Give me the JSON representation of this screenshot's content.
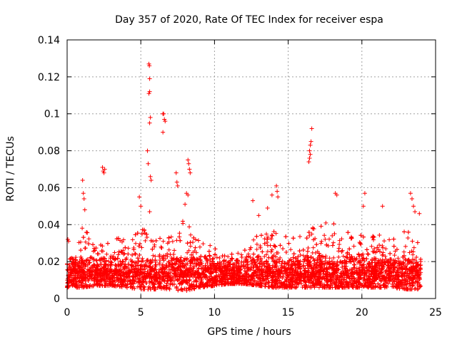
{
  "chart_data": {
    "type": "scatter",
    "title": "Day 357 of 2020, Rate Of TEC Index for receiver espa",
    "xlabel": "GPS time / hours",
    "ylabel": "ROTI / TECUs",
    "xlim": [
      0,
      25
    ],
    "ylim": [
      0,
      0.14
    ],
    "x_ticks": [
      "0",
      "5",
      "10",
      "15",
      "20",
      "25"
    ],
    "y_ticks": [
      "0",
      "0.02",
      "0.04",
      "0.06",
      "0.08",
      "0.1",
      "0.12",
      "0.14"
    ],
    "grid": true,
    "marker": "+",
    "series": [
      {
        "name": "ROTI",
        "color": "#ff0000",
        "points": [
          [
            0.05,
            0.032
          ],
          [
            0.1,
            0.031
          ],
          [
            0.3,
            0.022
          ],
          [
            1.05,
            0.064
          ],
          [
            1.1,
            0.057
          ],
          [
            1.15,
            0.054
          ],
          [
            1.2,
            0.048
          ],
          [
            2.4,
            0.071
          ],
          [
            2.45,
            0.069
          ],
          [
            2.5,
            0.068
          ],
          [
            2.55,
            0.07
          ],
          [
            4.9,
            0.055
          ],
          [
            5.0,
            0.05
          ],
          [
            5.45,
            0.08
          ],
          [
            5.5,
            0.073
          ],
          [
            5.55,
            0.127
          ],
          [
            5.58,
            0.126
          ],
          [
            5.6,
            0.119
          ],
          [
            5.55,
            0.111
          ],
          [
            5.6,
            0.112
          ],
          [
            5.65,
            0.098
          ],
          [
            5.6,
            0.095
          ],
          [
            5.65,
            0.066
          ],
          [
            5.7,
            0.064
          ],
          [
            5.6,
            0.047
          ],
          [
            6.5,
            0.1
          ],
          [
            6.55,
            0.1
          ],
          [
            6.6,
            0.097
          ],
          [
            6.65,
            0.096
          ],
          [
            6.5,
            0.09
          ],
          [
            7.4,
            0.068
          ],
          [
            7.45,
            0.063
          ],
          [
            7.5,
            0.061
          ],
          [
            8.2,
            0.075
          ],
          [
            8.25,
            0.073
          ],
          [
            8.3,
            0.07
          ],
          [
            8.35,
            0.068
          ],
          [
            8.1,
            0.057
          ],
          [
            8.2,
            0.056
          ],
          [
            8.0,
            0.051
          ],
          [
            12.6,
            0.053
          ],
          [
            13.0,
            0.045
          ],
          [
            13.6,
            0.049
          ],
          [
            13.9,
            0.056
          ],
          [
            14.2,
            0.061
          ],
          [
            14.25,
            0.058
          ],
          [
            14.3,
            0.055
          ],
          [
            16.6,
            0.092
          ],
          [
            16.55,
            0.085
          ],
          [
            16.5,
            0.083
          ],
          [
            16.45,
            0.08
          ],
          [
            16.5,
            0.078
          ],
          [
            16.45,
            0.076
          ],
          [
            16.4,
            0.074
          ],
          [
            18.2,
            0.057
          ],
          [
            18.3,
            0.056
          ],
          [
            20.2,
            0.057
          ],
          [
            20.1,
            0.05
          ],
          [
            21.4,
            0.05
          ],
          [
            23.3,
            0.057
          ],
          [
            23.4,
            0.054
          ],
          [
            23.5,
            0.05
          ],
          [
            23.6,
            0.047
          ],
          [
            23.9,
            0.046
          ]
        ]
      }
    ],
    "dense_band": {
      "description_note": "many points between 0.005 and 0.03 across 0-24 h",
      "x_range": [
        0,
        24
      ],
      "hours": [
        0,
        1,
        2,
        3,
        4,
        5,
        6,
        7,
        8,
        9,
        10,
        11,
        12,
        13,
        14,
        15,
        16,
        17,
        18,
        19,
        20,
        21,
        22,
        23,
        24
      ],
      "typical_low": [
        0.006,
        0.006,
        0.007,
        0.007,
        0.006,
        0.005,
        0.005,
        0.005,
        0.004,
        0.006,
        0.007,
        0.008,
        0.008,
        0.007,
        0.006,
        0.006,
        0.006,
        0.006,
        0.006,
        0.006,
        0.006,
        0.006,
        0.006,
        0.005,
        0.005
      ],
      "typical_high": [
        0.024,
        0.04,
        0.03,
        0.032,
        0.034,
        0.038,
        0.036,
        0.034,
        0.045,
        0.032,
        0.028,
        0.024,
        0.026,
        0.035,
        0.038,
        0.036,
        0.036,
        0.04,
        0.042,
        0.038,
        0.034,
        0.034,
        0.036,
        0.038,
        0.036
      ]
    }
  }
}
